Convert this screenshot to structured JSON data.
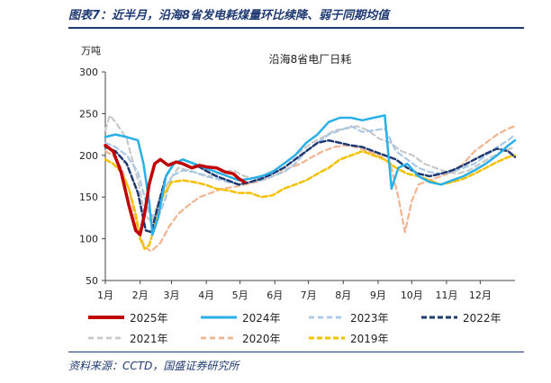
{
  "header": {
    "title": "图表7：近半月，沿海8省发电耗煤量环比续降、弱于同期均值"
  },
  "footer": {
    "source": "资料来源：CCTD，国盛证券研究所"
  },
  "colors": {
    "2025年": "#c00000",
    "2024年": "#2ab0e8",
    "2023年": "#a9c8e6",
    "2022年": "#1f3a72",
    "2021年": "#c9c9c9",
    "2020年": "#f2b38f",
    "2019年": "#f5c000"
  },
  "chart_data": {
    "type": "line",
    "title": "沿海8省电厂日耗",
    "ylabel": "万吨",
    "xlabel": "",
    "ylim": [
      50,
      300
    ],
    "yticks": [
      50,
      100,
      150,
      200,
      250,
      300
    ],
    "x_unit": "day of year",
    "xlim": [
      1,
      366
    ],
    "x_tick_labels": [
      "1月",
      "2月",
      "3月",
      "4月",
      "5月",
      "6月",
      "7月",
      "8月",
      "9月",
      "10月",
      "11月",
      "12月"
    ],
    "x_tick_positions": [
      1,
      32,
      60,
      91,
      121,
      152,
      182,
      213,
      244,
      274,
      305,
      335
    ],
    "series": [
      {
        "name": "2025年",
        "style": "solid-thick",
        "x": [
          1,
          8,
          15,
          22,
          28,
          32,
          36,
          40,
          45,
          50,
          57,
          64,
          70,
          78,
          85,
          92,
          100,
          108,
          115,
          120,
          125
        ],
        "values": [
          212,
          205,
          180,
          140,
          110,
          105,
          130,
          165,
          190,
          195,
          188,
          192,
          190,
          185,
          188,
          186,
          185,
          180,
          178,
          172,
          168
        ]
      },
      {
        "name": "2024年",
        "style": "solid",
        "x": [
          1,
          10,
          20,
          30,
          35,
          40,
          43,
          48,
          55,
          62,
          70,
          80,
          90,
          100,
          110,
          120,
          130,
          140,
          150,
          160,
          170,
          180,
          190,
          200,
          210,
          220,
          230,
          240,
          250,
          256,
          262,
          270,
          280,
          290,
          300,
          310,
          320,
          330,
          340,
          350,
          360,
          366
        ],
        "values": [
          222,
          225,
          222,
          218,
          190,
          145,
          105,
          125,
          175,
          190,
          195,
          190,
          185,
          180,
          175,
          170,
          172,
          175,
          180,
          190,
          200,
          215,
          225,
          240,
          245,
          245,
          242,
          245,
          248,
          160,
          185,
          190,
          175,
          168,
          165,
          170,
          175,
          182,
          190,
          200,
          212,
          218
        ]
      },
      {
        "name": "2023年",
        "style": "dashed",
        "x": [
          1,
          10,
          20,
          30,
          40,
          48,
          55,
          60,
          70,
          80,
          90,
          100,
          110,
          120,
          130,
          140,
          150,
          160,
          170,
          180,
          190,
          200,
          210,
          220,
          230,
          240,
          250,
          260,
          270,
          280,
          290,
          300,
          310,
          320,
          330,
          340,
          350,
          360,
          366
        ],
        "values": [
          215,
          210,
          200,
          180,
          130,
          125,
          150,
          175,
          182,
          180,
          175,
          172,
          168,
          165,
          168,
          170,
          175,
          180,
          190,
          205,
          215,
          225,
          230,
          235,
          228,
          230,
          232,
          205,
          195,
          185,
          180,
          178,
          180,
          185,
          190,
          200,
          210,
          218,
          225
        ]
      },
      {
        "name": "2022年",
        "style": "dashed-thick",
        "x": [
          1,
          10,
          20,
          30,
          37,
          42,
          48,
          55,
          62,
          70,
          80,
          90,
          100,
          110,
          120,
          130,
          140,
          150,
          160,
          170,
          180,
          190,
          200,
          210,
          220,
          230,
          240,
          250,
          260,
          270,
          280,
          290,
          300,
          310,
          320,
          330,
          340,
          350,
          360,
          366
        ],
        "values": [
          210,
          205,
          190,
          155,
          110,
          108,
          140,
          175,
          190,
          195,
          190,
          182,
          175,
          170,
          165,
          168,
          172,
          178,
          185,
          195,
          205,
          215,
          218,
          215,
          212,
          210,
          205,
          200,
          195,
          185,
          178,
          175,
          178,
          182,
          188,
          195,
          202,
          208,
          205,
          198
        ]
      },
      {
        "name": "2021年",
        "style": "dashed",
        "x": [
          1,
          5,
          10,
          20,
          30,
          36,
          42,
          50,
          58,
          66,
          75,
          85,
          95,
          105,
          115,
          125,
          135,
          145,
          155,
          165,
          175,
          185,
          195,
          205,
          215,
          225,
          235,
          245,
          255,
          265,
          275,
          285,
          295,
          305,
          315,
          325,
          335,
          345,
          355,
          366
        ],
        "values": [
          230,
          248,
          240,
          220,
          170,
          130,
          120,
          150,
          170,
          185,
          182,
          178,
          175,
          180,
          182,
          175,
          172,
          178,
          185,
          195,
          205,
          215,
          222,
          230,
          232,
          235,
          230,
          220,
          215,
          205,
          200,
          190,
          185,
          180,
          178,
          182,
          190,
          198,
          205,
          210
        ]
      },
      {
        "name": "2020年",
        "style": "dashed",
        "x": [
          1,
          8,
          15,
          22,
          30,
          36,
          42,
          50,
          58,
          66,
          75,
          85,
          95,
          105,
          115,
          125,
          135,
          145,
          155,
          165,
          175,
          185,
          195,
          205,
          215,
          225,
          235,
          245,
          255,
          262,
          268,
          274,
          280,
          290,
          300,
          310,
          320,
          330,
          340,
          350,
          360,
          366
        ],
        "values": [
          205,
          200,
          185,
          160,
          110,
          90,
          85,
          95,
          115,
          130,
          140,
          150,
          155,
          160,
          162,
          165,
          168,
          172,
          178,
          185,
          190,
          198,
          205,
          210,
          212,
          210,
          205,
          200,
          190,
          150,
          108,
          145,
          165,
          170,
          175,
          180,
          190,
          205,
          215,
          225,
          232,
          235
        ]
      },
      {
        "name": "2019年",
        "style": "dashed-thick",
        "x": [
          1,
          8,
          15,
          22,
          28,
          32,
          36,
          40,
          45,
          52,
          60,
          70,
          80,
          90,
          100,
          110,
          120,
          130,
          140,
          150,
          160,
          170,
          180,
          190,
          200,
          210,
          220,
          230,
          240,
          250,
          260,
          270,
          280,
          290,
          300,
          310,
          320,
          330,
          340,
          350,
          360,
          366
        ],
        "values": [
          195,
          190,
          180,
          160,
          130,
          100,
          88,
          92,
          115,
          150,
          168,
          170,
          168,
          165,
          160,
          158,
          155,
          155,
          150,
          152,
          160,
          165,
          170,
          178,
          185,
          195,
          200,
          205,
          200,
          195,
          185,
          178,
          175,
          170,
          165,
          168,
          172,
          178,
          185,
          192,
          198,
          200
        ]
      }
    ]
  }
}
